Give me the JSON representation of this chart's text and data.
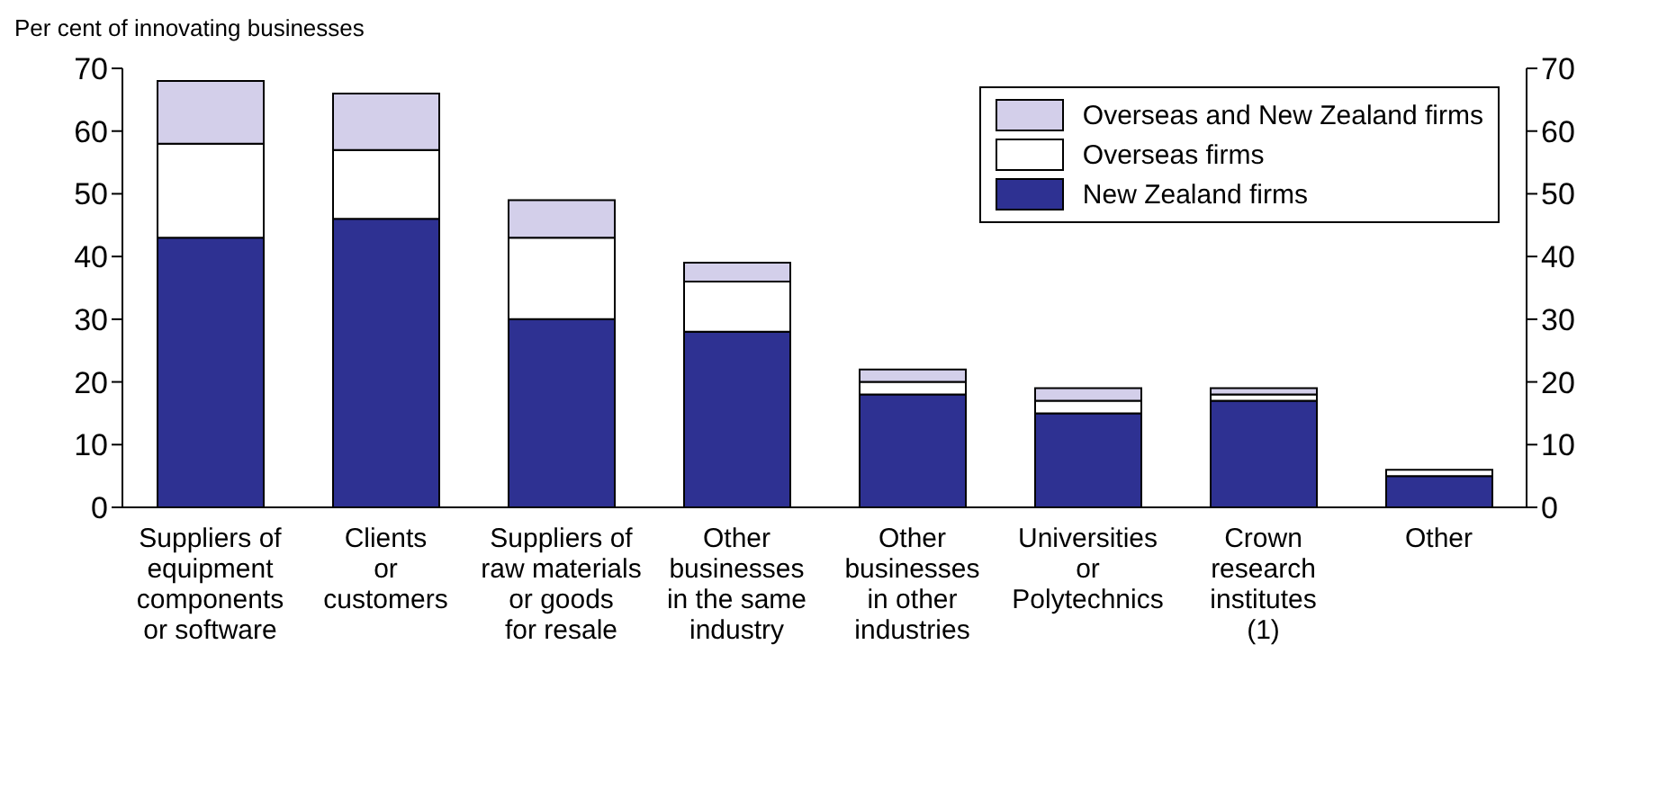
{
  "chart_data": {
    "type": "bar",
    "stacked": true,
    "ylabel": "Per cent of innovating businesses",
    "categories": [
      "Suppliers of\nequipment\ncomponents\nor software",
      "Clients\nor\ncustomers",
      "Suppliers of\nraw materials\nor goods\nfor resale",
      "Other\nbusinesses\nin the same\nindustry",
      "Other\nbusinesses\nin other\nindustries",
      "Universities\nor\nPolytechnics",
      "Crown\nresearch\ninstitutes\n(1)",
      "Other"
    ],
    "series": [
      {
        "name": "New Zealand firms",
        "color": "#2e3192",
        "values": [
          43,
          46,
          30,
          28,
          18,
          15,
          17,
          5
        ]
      },
      {
        "name": "Overseas firms",
        "color": "#ffffff",
        "values": [
          15,
          11,
          13,
          8,
          2,
          2,
          1,
          1
        ]
      },
      {
        "name": "Overseas and New Zealand firms",
        "color": "#d3cfea",
        "values": [
          10,
          9,
          6,
          3,
          2,
          2,
          1,
          0
        ]
      }
    ],
    "ylim": [
      0,
      70
    ],
    "yticks": [
      0,
      10,
      20,
      30,
      40,
      50,
      60,
      70
    ],
    "y2lim": [
      0,
      70
    ],
    "y2ticks": [
      0,
      10,
      20,
      30,
      40,
      50,
      60,
      70
    ],
    "legend": "top right",
    "grid": false
  }
}
